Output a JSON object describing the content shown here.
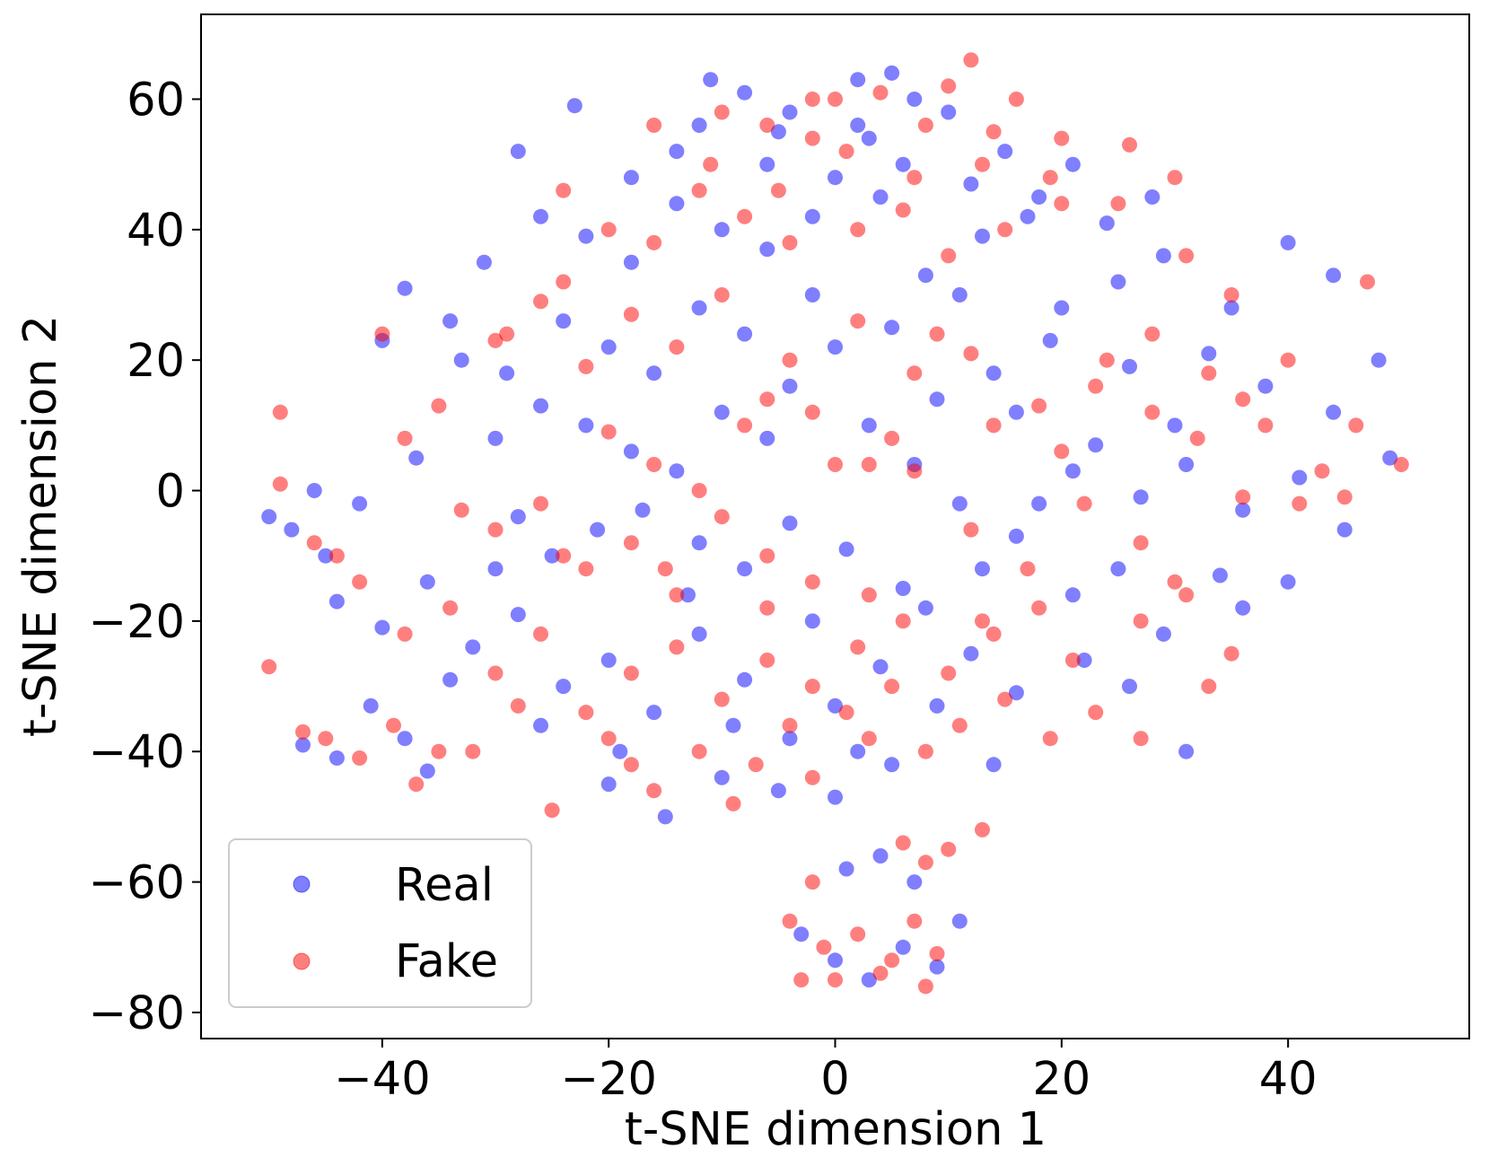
{
  "chart_data": {
    "type": "scatter",
    "title": "",
    "xlabel": "t-SNE dimension 1",
    "ylabel": "t-SNE dimension 2",
    "xlim": [
      -56,
      56
    ],
    "ylim": [
      -84,
      73
    ],
    "xticks": [
      -40,
      -20,
      0,
      20,
      40
    ],
    "yticks": [
      -80,
      -60,
      -40,
      -20,
      0,
      20,
      40,
      60
    ],
    "grid": false,
    "legend_position": "bottom-left",
    "series": [
      {
        "name": "Real",
        "color": "#0000ff",
        "alpha": 0.5,
        "points": [
          [
            2,
            63
          ],
          [
            5,
            64
          ],
          [
            7,
            60
          ],
          [
            -11,
            63
          ],
          [
            -8,
            61
          ],
          [
            -23,
            59
          ],
          [
            -28,
            52
          ],
          [
            -12,
            56
          ],
          [
            -5,
            55
          ],
          [
            3,
            54
          ],
          [
            10,
            58
          ],
          [
            15,
            52
          ],
          [
            21,
            50
          ],
          [
            -26,
            42
          ],
          [
            -22,
            39
          ],
          [
            -18,
            35
          ],
          [
            -14,
            44
          ],
          [
            -10,
            40
          ],
          [
            -6,
            37
          ],
          [
            -2,
            42
          ],
          [
            4,
            45
          ],
          [
            8,
            33
          ],
          [
            13,
            39
          ],
          [
            17,
            42
          ],
          [
            24,
            41
          ],
          [
            28,
            45
          ],
          [
            -33,
            20
          ],
          [
            -29,
            18
          ],
          [
            -24,
            26
          ],
          [
            -20,
            22
          ],
          [
            -16,
            18
          ],
          [
            -12,
            28
          ],
          [
            -8,
            24
          ],
          [
            -4,
            16
          ],
          [
            0,
            22
          ],
          [
            5,
            25
          ],
          [
            9,
            14
          ],
          [
            14,
            18
          ],
          [
            19,
            23
          ],
          [
            26,
            19
          ],
          [
            33,
            21
          ],
          [
            38,
            16
          ],
          [
            44,
            12
          ],
          [
            -38,
            31
          ],
          [
            -40,
            23
          ],
          [
            -31,
            35
          ],
          [
            -34,
            26
          ],
          [
            -46,
            0
          ],
          [
            -42,
            -2
          ],
          [
            -37,
            5
          ],
          [
            -28,
            -4
          ],
          [
            -25,
            -10
          ],
          [
            -21,
            -6
          ],
          [
            -17,
            -3
          ],
          [
            -12,
            -8
          ],
          [
            -8,
            -12
          ],
          [
            -4,
            -5
          ],
          [
            1,
            -9
          ],
          [
            6,
            -15
          ],
          [
            11,
            -2
          ],
          [
            16,
            -7
          ],
          [
            21,
            3
          ],
          [
            27,
            -1
          ],
          [
            31,
            4
          ],
          [
            36,
            -3
          ],
          [
            41,
            2
          ],
          [
            45,
            -6
          ],
          [
            49,
            5
          ],
          [
            -44,
            -17
          ],
          [
            -40,
            -21
          ],
          [
            -36,
            -14
          ],
          [
            -32,
            -24
          ],
          [
            -28,
            -19
          ],
          [
            -24,
            -30
          ],
          [
            -20,
            -26
          ],
          [
            -16,
            -34
          ],
          [
            -12,
            -22
          ],
          [
            -8,
            -29
          ],
          [
            -4,
            -38
          ],
          [
            0,
            -33
          ],
          [
            4,
            -27
          ],
          [
            8,
            -18
          ],
          [
            12,
            -25
          ],
          [
            16,
            -31
          ],
          [
            21,
            -16
          ],
          [
            25,
            -12
          ],
          [
            29,
            -22
          ],
          [
            34,
            -13
          ],
          [
            -47,
            -39
          ],
          [
            -44,
            -41
          ],
          [
            -38,
            -38
          ],
          [
            -36,
            -43
          ],
          [
            -20,
            -45
          ],
          [
            -15,
            -50
          ],
          [
            -10,
            -44
          ],
          [
            -5,
            -46
          ],
          [
            0,
            -47
          ],
          [
            5,
            -42
          ],
          [
            14,
            -42
          ],
          [
            1,
            -58
          ],
          [
            4,
            -56
          ],
          [
            7,
            -60
          ],
          [
            -3,
            -68
          ],
          [
            0,
            -72
          ],
          [
            3,
            -75
          ],
          [
            6,
            -70
          ],
          [
            9,
            -73
          ],
          [
            11,
            -66
          ],
          [
            -45,
            -10
          ],
          [
            -41,
            -33
          ],
          [
            -34,
            -29
          ],
          [
            -30,
            -12
          ],
          [
            -26,
            -36
          ],
          [
            -19,
            -40
          ],
          [
            -13,
            -16
          ],
          [
            -9,
            -36
          ],
          [
            -2,
            -20
          ],
          [
            2,
            -40
          ],
          [
            9,
            -33
          ],
          [
            13,
            -12
          ],
          [
            18,
            -2
          ],
          [
            23,
            7
          ],
          [
            30,
            10
          ],
          [
            35,
            28
          ],
          [
            40,
            38
          ],
          [
            44,
            33
          ],
          [
            48,
            20
          ],
          [
            -6,
            8
          ],
          [
            -2,
            30
          ],
          [
            3,
            10
          ],
          [
            7,
            4
          ],
          [
            11,
            30
          ],
          [
            16,
            12
          ],
          [
            20,
            28
          ],
          [
            25,
            32
          ],
          [
            29,
            36
          ],
          [
            -30,
            8
          ],
          [
            -26,
            13
          ],
          [
            -22,
            10
          ],
          [
            -18,
            6
          ],
          [
            -14,
            3
          ],
          [
            -10,
            12
          ],
          [
            22,
            -26
          ],
          [
            26,
            -30
          ],
          [
            31,
            -40
          ],
          [
            36,
            -18
          ],
          [
            40,
            -14
          ],
          [
            -50,
            -4
          ],
          [
            -48,
            -6
          ],
          [
            -18,
            48
          ],
          [
            -14,
            52
          ],
          [
            -6,
            50
          ],
          [
            0,
            48
          ],
          [
            6,
            50
          ],
          [
            12,
            47
          ],
          [
            18,
            45
          ],
          [
            -4,
            58
          ],
          [
            2,
            56
          ]
        ]
      },
      {
        "name": "Fake",
        "color": "#ff0000",
        "alpha": 0.5,
        "points": [
          [
            0,
            60
          ],
          [
            4,
            61
          ],
          [
            12,
            66
          ],
          [
            -10,
            58
          ],
          [
            -6,
            56
          ],
          [
            -2,
            54
          ],
          [
            8,
            56
          ],
          [
            14,
            55
          ],
          [
            20,
            54
          ],
          [
            26,
            53
          ],
          [
            -24,
            46
          ],
          [
            -20,
            40
          ],
          [
            -16,
            38
          ],
          [
            -12,
            46
          ],
          [
            -8,
            42
          ],
          [
            -4,
            38
          ],
          [
            2,
            40
          ],
          [
            6,
            43
          ],
          [
            10,
            36
          ],
          [
            15,
            40
          ],
          [
            20,
            44
          ],
          [
            30,
            48
          ],
          [
            -30,
            23
          ],
          [
            -26,
            29
          ],
          [
            -22,
            19
          ],
          [
            -18,
            27
          ],
          [
            -14,
            22
          ],
          [
            -10,
            30
          ],
          [
            -6,
            14
          ],
          [
            -2,
            12
          ],
          [
            2,
            26
          ],
          [
            7,
            18
          ],
          [
            12,
            21
          ],
          [
            18,
            13
          ],
          [
            23,
            16
          ],
          [
            28,
            12
          ],
          [
            32,
            8
          ],
          [
            36,
            14
          ],
          [
            40,
            20
          ],
          [
            46,
            10
          ],
          [
            47,
            32
          ],
          [
            -49,
            12
          ],
          [
            -40,
            24
          ],
          [
            -38,
            8
          ],
          [
            -30,
            -6
          ],
          [
            -26,
            -2
          ],
          [
            -22,
            -12
          ],
          [
            -18,
            -8
          ],
          [
            -14,
            -16
          ],
          [
            -10,
            -4
          ],
          [
            -6,
            -10
          ],
          [
            -2,
            -14
          ],
          [
            3,
            4
          ],
          [
            7,
            3
          ],
          [
            12,
            -6
          ],
          [
            17,
            -12
          ],
          [
            22,
            -2
          ],
          [
            27,
            -8
          ],
          [
            31,
            -16
          ],
          [
            36,
            -1
          ],
          [
            41,
            -2
          ],
          [
            45,
            -1
          ],
          [
            50,
            4
          ],
          [
            -49,
            1
          ],
          [
            -46,
            -8
          ],
          [
            -42,
            -14
          ],
          [
            -38,
            -22
          ],
          [
            -34,
            -18
          ],
          [
            -30,
            -28
          ],
          [
            -26,
            -22
          ],
          [
            -22,
            -34
          ],
          [
            -18,
            -28
          ],
          [
            -14,
            -24
          ],
          [
            -10,
            -32
          ],
          [
            -6,
            -26
          ],
          [
            -2,
            -30
          ],
          [
            2,
            -24
          ],
          [
            6,
            -20
          ],
          [
            10,
            -28
          ],
          [
            14,
            -22
          ],
          [
            18,
            -18
          ],
          [
            23,
            -34
          ],
          [
            27,
            -38
          ],
          [
            30,
            -14
          ],
          [
            35,
            -25
          ],
          [
            -50,
            -27
          ],
          [
            -47,
            -37
          ],
          [
            -45,
            -38
          ],
          [
            -42,
            -41
          ],
          [
            -39,
            -36
          ],
          [
            -37,
            -45
          ],
          [
            -35,
            -40
          ],
          [
            -25,
            -49
          ],
          [
            -18,
            -42
          ],
          [
            -12,
            -40
          ],
          [
            -7,
            -42
          ],
          [
            -2,
            -44
          ],
          [
            3,
            -38
          ],
          [
            8,
            -40
          ],
          [
            13,
            -52
          ],
          [
            6,
            -54
          ],
          [
            8,
            -57
          ],
          [
            10,
            -55
          ],
          [
            -2,
            -60
          ],
          [
            -4,
            -66
          ],
          [
            -1,
            -70
          ],
          [
            2,
            -68
          ],
          [
            5,
            -72
          ],
          [
            7,
            -66
          ],
          [
            9,
            -71
          ],
          [
            -3,
            -75
          ],
          [
            0,
            -75
          ],
          [
            4,
            -74
          ],
          [
            8,
            -76
          ],
          [
            -44,
            -10
          ],
          [
            -32,
            -40
          ],
          [
            -28,
            -33
          ],
          [
            -20,
            -38
          ],
          [
            -16,
            -46
          ],
          [
            -9,
            -48
          ],
          [
            -4,
            -36
          ],
          [
            1,
            -34
          ],
          [
            5,
            -30
          ],
          [
            11,
            -36
          ],
          [
            15,
            -32
          ],
          [
            19,
            -38
          ],
          [
            -35,
            13
          ],
          [
            -29,
            24
          ],
          [
            -24,
            32
          ],
          [
            -20,
            9
          ],
          [
            -16,
            4
          ],
          [
            -12,
            0
          ],
          [
            -8,
            10
          ],
          [
            -4,
            20
          ],
          [
            0,
            4
          ],
          [
            5,
            8
          ],
          [
            9,
            24
          ],
          [
            14,
            10
          ],
          [
            20,
            6
          ],
          [
            24,
            20
          ],
          [
            28,
            24
          ],
          [
            33,
            18
          ],
          [
            38,
            10
          ],
          [
            43,
            3
          ],
          [
            -33,
            -3
          ],
          [
            -24,
            -10
          ],
          [
            -15,
            -12
          ],
          [
            -6,
            -18
          ],
          [
            3,
            -16
          ],
          [
            13,
            -20
          ],
          [
            21,
            -26
          ],
          [
            27,
            -20
          ],
          [
            33,
            -30
          ],
          [
            -11,
            50
          ],
          [
            -5,
            46
          ],
          [
            1,
            52
          ],
          [
            7,
            48
          ],
          [
            13,
            50
          ],
          [
            19,
            48
          ],
          [
            25,
            44
          ],
          [
            31,
            36
          ],
          [
            35,
            30
          ],
          [
            -16,
            56
          ],
          [
            -2,
            60
          ],
          [
            10,
            62
          ],
          [
            16,
            60
          ]
        ]
      }
    ]
  }
}
